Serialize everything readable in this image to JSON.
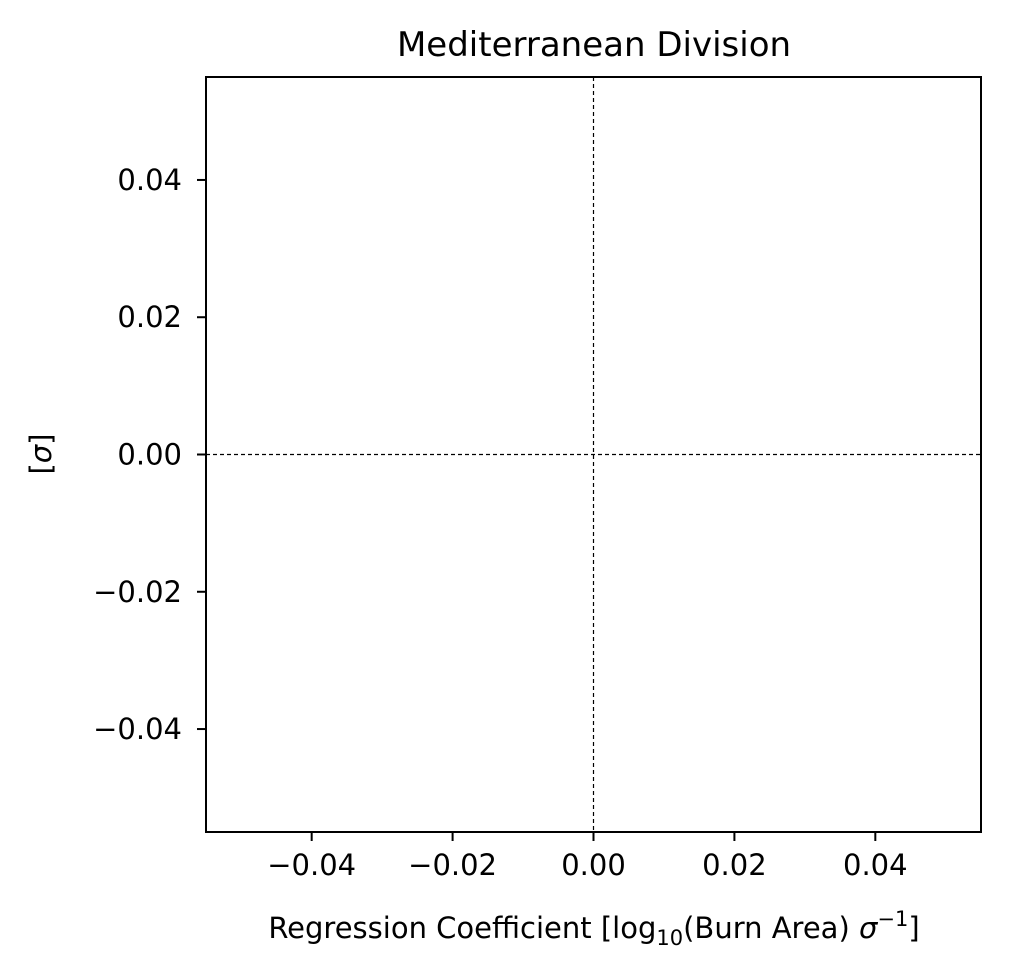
{
  "chart_data": {
    "type": "scatter",
    "title": "Mediterranean Division",
    "xlabel": {
      "prefix": "Regression Coefficient [log",
      "sub": "10",
      "mid": "(Burn Area) ",
      "sym": "σ",
      "sup": "−1",
      "suffix": "]"
    },
    "ylabel": {
      "prefix": "[",
      "sym": "σ",
      "suffix": "]"
    },
    "xlim": [
      -0.055,
      0.055
    ],
    "ylim": [
      -0.055,
      0.055
    ],
    "xticks": [
      {
        "value": -0.04,
        "label": "−0.04"
      },
      {
        "value": -0.02,
        "label": "−0.02"
      },
      {
        "value": 0.0,
        "label": "0.00"
      },
      {
        "value": 0.02,
        "label": "0.02"
      },
      {
        "value": 0.04,
        "label": "0.04"
      }
    ],
    "yticks": [
      {
        "value": 0.04,
        "label": "0.04"
      },
      {
        "value": 0.02,
        "label": "0.02"
      },
      {
        "value": 0.0,
        "label": "0.00"
      },
      {
        "value": -0.02,
        "label": "−0.02"
      },
      {
        "value": -0.04,
        "label": "−0.04"
      }
    ],
    "reference_lines": [
      {
        "orientation": "vertical",
        "value": 0.0,
        "style": "dashed",
        "color": "#000000"
      },
      {
        "orientation": "horizontal",
        "value": 0.0,
        "style": "dashed",
        "color": "#000000"
      }
    ],
    "series": [],
    "grid": false
  }
}
